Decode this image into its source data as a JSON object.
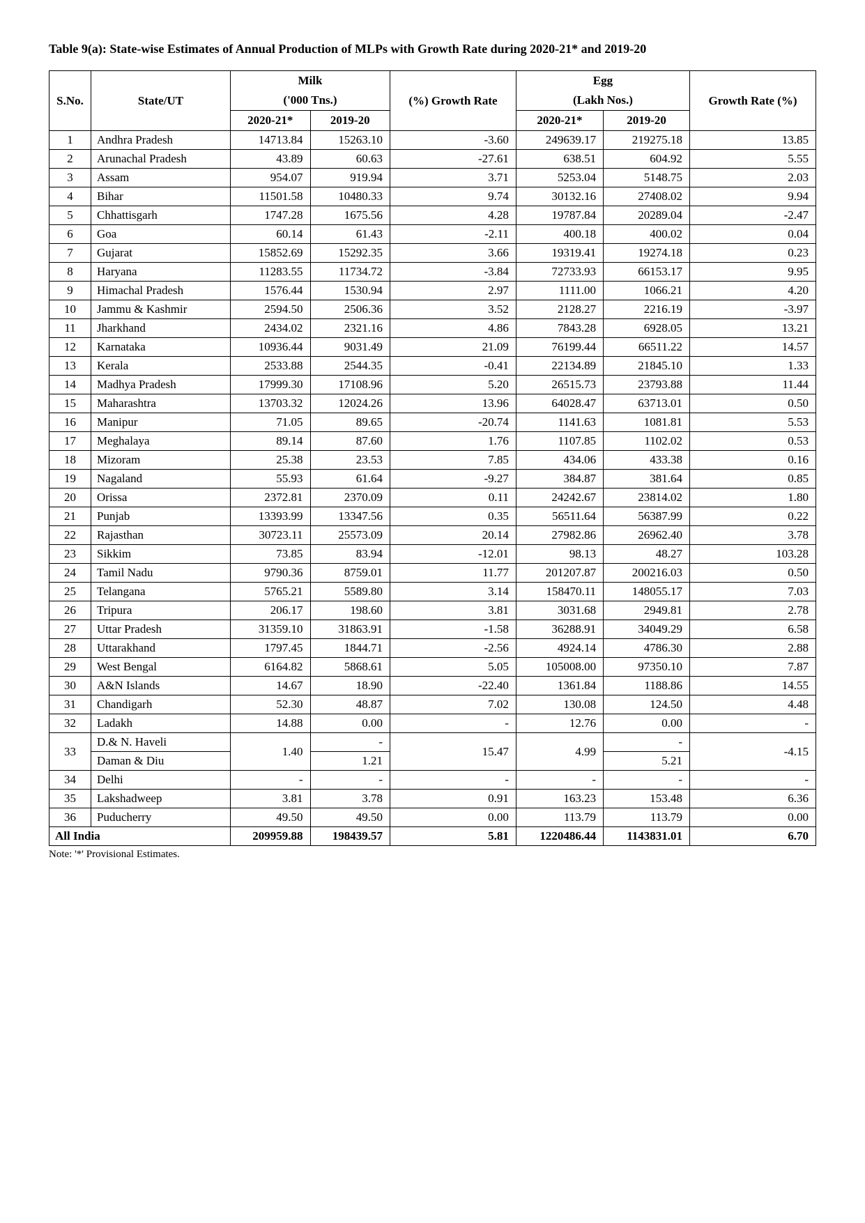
{
  "title": "Table 9(a): State-wise Estimates of Annual Production of MLPs with Growth Rate during 2020-21* and 2019-20",
  "headers": {
    "sno": "S.No.",
    "state": "State/UT",
    "milk": "Milk",
    "milk_unit": "('000 Tns.)",
    "milk_growth": "(%) Growth Rate",
    "egg": "Egg",
    "egg_unit": "(Lakh Nos.)",
    "egg_growth": "Growth Rate (%)",
    "y2020": "2020-21*",
    "y2019": "2019-20"
  },
  "rows": [
    {
      "sno": "1",
      "state": "Andhra Pradesh",
      "milk2020": "14713.84",
      "milk2019": "15263.10",
      "milkGrowth": "-3.60",
      "egg2020": "249639.17",
      "egg2019": "219275.18",
      "eggGrowth": "13.85"
    },
    {
      "sno": "2",
      "state": "Arunachal Pradesh",
      "milk2020": "43.89",
      "milk2019": "60.63",
      "milkGrowth": "-27.61",
      "egg2020": "638.51",
      "egg2019": "604.92",
      "eggGrowth": "5.55"
    },
    {
      "sno": "3",
      "state": "Assam",
      "milk2020": "954.07",
      "milk2019": "919.94",
      "milkGrowth": "3.71",
      "egg2020": "5253.04",
      "egg2019": "5148.75",
      "eggGrowth": "2.03"
    },
    {
      "sno": "4",
      "state": "Bihar",
      "milk2020": "11501.58",
      "milk2019": "10480.33",
      "milkGrowth": "9.74",
      "egg2020": "30132.16",
      "egg2019": "27408.02",
      "eggGrowth": "9.94"
    },
    {
      "sno": "5",
      "state": "Chhattisgarh",
      "milk2020": "1747.28",
      "milk2019": "1675.56",
      "milkGrowth": "4.28",
      "egg2020": "19787.84",
      "egg2019": "20289.04",
      "eggGrowth": "-2.47"
    },
    {
      "sno": "6",
      "state": "Goa",
      "milk2020": "60.14",
      "milk2019": "61.43",
      "milkGrowth": "-2.11",
      "egg2020": "400.18",
      "egg2019": "400.02",
      "eggGrowth": "0.04"
    },
    {
      "sno": "7",
      "state": "Gujarat",
      "milk2020": "15852.69",
      "milk2019": "15292.35",
      "milkGrowth": "3.66",
      "egg2020": "19319.41",
      "egg2019": "19274.18",
      "eggGrowth": "0.23"
    },
    {
      "sno": "8",
      "state": "Haryana",
      "milk2020": "11283.55",
      "milk2019": "11734.72",
      "milkGrowth": "-3.84",
      "egg2020": "72733.93",
      "egg2019": "66153.17",
      "eggGrowth": "9.95"
    },
    {
      "sno": "9",
      "state": "Himachal Pradesh",
      "milk2020": "1576.44",
      "milk2019": "1530.94",
      "milkGrowth": "2.97",
      "egg2020": "1111.00",
      "egg2019": "1066.21",
      "eggGrowth": "4.20"
    },
    {
      "sno": "10",
      "state": "Jammu & Kashmir",
      "milk2020": "2594.50",
      "milk2019": "2506.36",
      "milkGrowth": "3.52",
      "egg2020": "2128.27",
      "egg2019": "2216.19",
      "eggGrowth": "-3.97"
    },
    {
      "sno": "11",
      "state": "Jharkhand",
      "milk2020": "2434.02",
      "milk2019": "2321.16",
      "milkGrowth": "4.86",
      "egg2020": "7843.28",
      "egg2019": "6928.05",
      "eggGrowth": "13.21"
    },
    {
      "sno": "12",
      "state": "Karnataka",
      "milk2020": "10936.44",
      "milk2019": "9031.49",
      "milkGrowth": "21.09",
      "egg2020": "76199.44",
      "egg2019": "66511.22",
      "eggGrowth": "14.57"
    },
    {
      "sno": "13",
      "state": "Kerala",
      "milk2020": "2533.88",
      "milk2019": "2544.35",
      "milkGrowth": "-0.41",
      "egg2020": "22134.89",
      "egg2019": "21845.10",
      "eggGrowth": "1.33"
    },
    {
      "sno": "14",
      "state": "Madhya Pradesh",
      "milk2020": "17999.30",
      "milk2019": "17108.96",
      "milkGrowth": "5.20",
      "egg2020": "26515.73",
      "egg2019": "23793.88",
      "eggGrowth": "11.44"
    },
    {
      "sno": "15",
      "state": "Maharashtra",
      "milk2020": "13703.32",
      "milk2019": "12024.26",
      "milkGrowth": "13.96",
      "egg2020": "64028.47",
      "egg2019": "63713.01",
      "eggGrowth": "0.50"
    },
    {
      "sno": "16",
      "state": "Manipur",
      "milk2020": "71.05",
      "milk2019": "89.65",
      "milkGrowth": "-20.74",
      "egg2020": "1141.63",
      "egg2019": "1081.81",
      "eggGrowth": "5.53"
    },
    {
      "sno": "17",
      "state": "Meghalaya",
      "milk2020": "89.14",
      "milk2019": "87.60",
      "milkGrowth": "1.76",
      "egg2020": "1107.85",
      "egg2019": "1102.02",
      "eggGrowth": "0.53"
    },
    {
      "sno": "18",
      "state": "Mizoram",
      "milk2020": "25.38",
      "milk2019": "23.53",
      "milkGrowth": "7.85",
      "egg2020": "434.06",
      "egg2019": "433.38",
      "eggGrowth": "0.16"
    },
    {
      "sno": "19",
      "state": "Nagaland",
      "milk2020": "55.93",
      "milk2019": "61.64",
      "milkGrowth": "-9.27",
      "egg2020": "384.87",
      "egg2019": "381.64",
      "eggGrowth": "0.85"
    },
    {
      "sno": "20",
      "state": "Orissa",
      "milk2020": "2372.81",
      "milk2019": "2370.09",
      "milkGrowth": "0.11",
      "egg2020": "24242.67",
      "egg2019": "23814.02",
      "eggGrowth": "1.80"
    },
    {
      "sno": "21",
      "state": "Punjab",
      "milk2020": "13393.99",
      "milk2019": "13347.56",
      "milkGrowth": "0.35",
      "egg2020": "56511.64",
      "egg2019": "56387.99",
      "eggGrowth": "0.22"
    },
    {
      "sno": "22",
      "state": "Rajasthan",
      "milk2020": "30723.11",
      "milk2019": "25573.09",
      "milkGrowth": "20.14",
      "egg2020": "27982.86",
      "egg2019": "26962.40",
      "eggGrowth": "3.78"
    },
    {
      "sno": "23",
      "state": "Sikkim",
      "milk2020": "73.85",
      "milk2019": "83.94",
      "milkGrowth": "-12.01",
      "egg2020": "98.13",
      "egg2019": "48.27",
      "eggGrowth": "103.28"
    },
    {
      "sno": "24",
      "state": "Tamil Nadu",
      "milk2020": "9790.36",
      "milk2019": "8759.01",
      "milkGrowth": "11.77",
      "egg2020": "201207.87",
      "egg2019": "200216.03",
      "eggGrowth": "0.50"
    },
    {
      "sno": "25",
      "state": "Telangana",
      "milk2020": "5765.21",
      "milk2019": "5589.80",
      "milkGrowth": "3.14",
      "egg2020": "158470.11",
      "egg2019": "148055.17",
      "eggGrowth": "7.03"
    },
    {
      "sno": "26",
      "state": "Tripura",
      "milk2020": "206.17",
      "milk2019": "198.60",
      "milkGrowth": "3.81",
      "egg2020": "3031.68",
      "egg2019": "2949.81",
      "eggGrowth": "2.78"
    },
    {
      "sno": "27",
      "state": "Uttar Pradesh",
      "milk2020": "31359.10",
      "milk2019": "31863.91",
      "milkGrowth": "-1.58",
      "egg2020": "36288.91",
      "egg2019": "34049.29",
      "eggGrowth": "6.58"
    },
    {
      "sno": "28",
      "state": "Uttarakhand",
      "milk2020": "1797.45",
      "milk2019": "1844.71",
      "milkGrowth": "-2.56",
      "egg2020": "4924.14",
      "egg2019": "4786.30",
      "eggGrowth": "2.88"
    },
    {
      "sno": "29",
      "state": "West Bengal",
      "milk2020": "6164.82",
      "milk2019": "5868.61",
      "milkGrowth": "5.05",
      "egg2020": "105008.00",
      "egg2019": "97350.10",
      "eggGrowth": "7.87"
    },
    {
      "sno": "30",
      "state": "A&N Islands",
      "milk2020": "14.67",
      "milk2019": "18.90",
      "milkGrowth": "-22.40",
      "egg2020": "1361.84",
      "egg2019": "1188.86",
      "eggGrowth": "14.55"
    },
    {
      "sno": "31",
      "state": "Chandigarh",
      "milk2020": "52.30",
      "milk2019": "48.87",
      "milkGrowth": "7.02",
      "egg2020": "130.08",
      "egg2019": "124.50",
      "eggGrowth": "4.48"
    },
    {
      "sno": "32",
      "state": "Ladakh",
      "milk2020": "14.88",
      "milk2019": "0.00",
      "milkGrowth": "-",
      "egg2020": "12.76",
      "egg2019": "0.00",
      "eggGrowth": "-"
    }
  ],
  "row33": {
    "sno": "33",
    "state_top": "D.& N. Haveli",
    "state_bottom": "Daman & Diu",
    "milk2020": "1.40",
    "milk2019_top": "-",
    "milk2019_bottom": "1.21",
    "milkGrowth": "15.47",
    "egg2020": "4.99",
    "egg2019_top": "-",
    "egg2019_bottom": "5.21",
    "eggGrowth": "-4.15"
  },
  "row34": {
    "sno": "34",
    "state": "Delhi",
    "milk2020": "-",
    "milk2019": "-",
    "milkGrowth": "-",
    "egg2020": "-",
    "egg2019": "-",
    "eggGrowth": "-"
  },
  "row35": {
    "sno": "35",
    "state": "Lakshadweep",
    "milk2020": "3.81",
    "milk2019": "3.78",
    "milkGrowth": "0.91",
    "egg2020": "163.23",
    "egg2019": "153.48",
    "eggGrowth": "6.36"
  },
  "row36": {
    "sno": "36",
    "state": "Puducherry",
    "milk2020": "49.50",
    "milk2019": "49.50",
    "milkGrowth": "0.00",
    "egg2020": "113.79",
    "egg2019": "113.79",
    "eggGrowth": "0.00"
  },
  "allIndia": {
    "label": "All India",
    "milk2020": "209959.88",
    "milk2019": "198439.57",
    "milkGrowth": "5.81",
    "egg2020": "1220486.44",
    "egg2019": "1143831.01",
    "eggGrowth": "6.70"
  },
  "note": "Note: '*' Provisional Estimates."
}
